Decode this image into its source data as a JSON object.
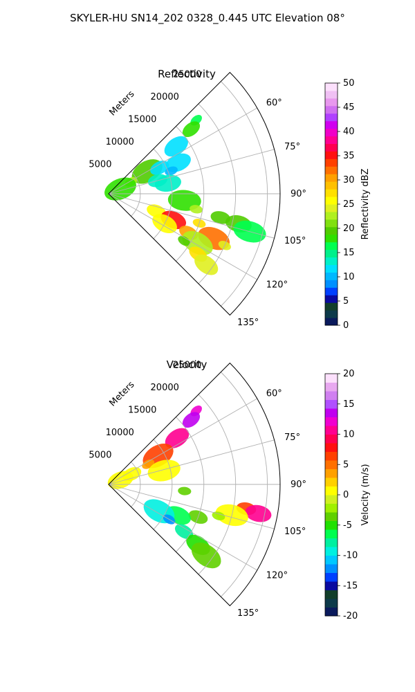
{
  "figure": {
    "suptitle": "SKYLER-HU  SN14_202  0328_0.445 UTC Elevation 08°"
  },
  "chart_data": [
    {
      "type": "heatmap",
      "projection": "polar-sector",
      "title": "Reflectivity",
      "radial_label": "Meters",
      "radial_ticks": [
        "5000",
        "10000",
        "15000",
        "20000",
        "25000"
      ],
      "radial_tick_values": [
        5000,
        10000,
        15000,
        20000,
        25000
      ],
      "rlim": [
        0,
        27000
      ],
      "angle_ticks": [
        "60°",
        "75°",
        "90°",
        "105°",
        "120°",
        "135°"
      ],
      "angle_tick_values": [
        60,
        75,
        90,
        105,
        120,
        135
      ],
      "azimuth_range": [
        45,
        135
      ],
      "grid": true,
      "colorbar": {
        "label": "Reflectivity dBZ",
        "ticks": [
          "0",
          "5",
          "10",
          "15",
          "20",
          "25",
          "30",
          "35",
          "40",
          "45",
          "50"
        ],
        "range": [
          0,
          50
        ],
        "colors": [
          "#0a1a5c",
          "#0d3a4a",
          "#123e2a",
          "#0a0aa0",
          "#0040ff",
          "#0090ff",
          "#00b8ff",
          "#00e0ff",
          "#00f0c8",
          "#00f08c",
          "#00ff50",
          "#30e000",
          "#50cc00",
          "#80e010",
          "#b0f020",
          "#e0f020",
          "#ffff00",
          "#ffe000",
          "#ffc000",
          "#ffa000",
          "#ff7000",
          "#ff4000",
          "#ff1010",
          "#ff0050",
          "#ff0090",
          "#f000c8",
          "#d000f0",
          "#b040ff",
          "#d070f0",
          "#e898ee",
          "#f0c0f4",
          "#fce0fc"
        ]
      },
      "cells": [
        {
          "az": 50,
          "r": 18000,
          "v": 17
        },
        {
          "az": 52,
          "r": 16500,
          "v": 18
        },
        {
          "az": 55,
          "r": 13000,
          "v": 12
        },
        {
          "az": 60,
          "r": 7000,
          "v": 20
        },
        {
          "az": 62,
          "r": 4000,
          "v": 22
        },
        {
          "az": 63,
          "r": 9000,
          "v": 12
        },
        {
          "az": 66,
          "r": 12000,
          "v": 11
        },
        {
          "az": 68,
          "r": 2000,
          "v": 18
        },
        {
          "az": 70,
          "r": 10500,
          "v": 10
        },
        {
          "az": 75,
          "r": 8000,
          "v": 13
        },
        {
          "az": 80,
          "r": 9500,
          "v": 14
        },
        {
          "az": 95,
          "r": 12000,
          "v": 18
        },
        {
          "az": 100,
          "r": 14000,
          "v": 22
        },
        {
          "az": 102,
          "r": 18000,
          "v": 20
        },
        {
          "az": 103,
          "r": 21000,
          "v": 19
        },
        {
          "az": 105,
          "r": 23000,
          "v": 17
        },
        {
          "az": 108,
          "r": 15000,
          "v": 28
        },
        {
          "az": 110,
          "r": 8000,
          "v": 25
        },
        {
          "az": 112,
          "r": 11000,
          "v": 35
        },
        {
          "az": 113,
          "r": 18000,
          "v": 32
        },
        {
          "az": 114,
          "r": 20000,
          "v": 24
        },
        {
          "az": 116,
          "r": 14000,
          "v": 30
        },
        {
          "az": 118,
          "r": 10000,
          "v": 26
        },
        {
          "az": 119,
          "r": 16000,
          "v": 22
        },
        {
          "az": 122,
          "r": 14000,
          "v": 20
        },
        {
          "az": 124,
          "r": 17000,
          "v": 28
        },
        {
          "az": 126,
          "r": 19000,
          "v": 24
        }
      ]
    },
    {
      "type": "heatmap",
      "projection": "polar-sector",
      "title": "Velocity",
      "radial_label": "Meters",
      "radial_ticks": [
        "5000",
        "10000",
        "15000",
        "20000",
        "25000"
      ],
      "radial_tick_values": [
        5000,
        10000,
        15000,
        20000,
        25000
      ],
      "rlim": [
        0,
        27000
      ],
      "angle_ticks": [
        "60°",
        "75°",
        "90°",
        "105°",
        "120°",
        "135°"
      ],
      "angle_tick_values": [
        60,
        75,
        90,
        105,
        120,
        135
      ],
      "azimuth_range": [
        45,
        135
      ],
      "grid": true,
      "colorbar": {
        "label": "Velocity (m/s)",
        "ticks": [
          "-20",
          "-15",
          "-10",
          "-5",
          "0",
          "5",
          "10",
          "15",
          "20"
        ],
        "range": [
          -20,
          20
        ],
        "colors": [
          "#0a1a5c",
          "#0d3a4a",
          "#123e2a",
          "#0a0aa0",
          "#0040ff",
          "#0090ff",
          "#00c8ff",
          "#00f0e0",
          "#00f0a0",
          "#00ff50",
          "#20e000",
          "#60d000",
          "#a0f000",
          "#d0f020",
          "#ffff00",
          "#ffd000",
          "#ffa000",
          "#ff7000",
          "#ff4000",
          "#ff1010",
          "#ff0050",
          "#ff0090",
          "#f000d0",
          "#c000f0",
          "#b050ff",
          "#d080f0",
          "#e8a8f0",
          "#fce0fc"
        ]
      },
      "cells": [
        {
          "az": 50,
          "r": 18000,
          "v": 12
        },
        {
          "az": 52,
          "r": 16500,
          "v": 14
        },
        {
          "az": 56,
          "r": 13000,
          "v": 10
        },
        {
          "az": 60,
          "r": 9000,
          "v": 6
        },
        {
          "az": 63,
          "r": 7000,
          "v": 3
        },
        {
          "az": 66,
          "r": 4000,
          "v": 1
        },
        {
          "az": 70,
          "r": 2000,
          "v": 0
        },
        {
          "az": 76,
          "r": 9000,
          "v": 1
        },
        {
          "az": 95,
          "r": 12000,
          "v": -3
        },
        {
          "az": 100,
          "r": 22000,
          "v": 6
        },
        {
          "az": 101,
          "r": 24000,
          "v": 10
        },
        {
          "az": 104,
          "r": 20000,
          "v": 0
        },
        {
          "az": 106,
          "r": 18000,
          "v": -2
        },
        {
          "az": 110,
          "r": 15000,
          "v": -4
        },
        {
          "az": 114,
          "r": 12000,
          "v": -6
        },
        {
          "az": 118,
          "r": 9000,
          "v": -10
        },
        {
          "az": 120,
          "r": 11000,
          "v": -12
        },
        {
          "az": 122,
          "r": 14000,
          "v": -8
        },
        {
          "az": 124,
          "r": 17000,
          "v": -5
        },
        {
          "az": 126,
          "r": 19000,
          "v": -4
        }
      ]
    }
  ]
}
